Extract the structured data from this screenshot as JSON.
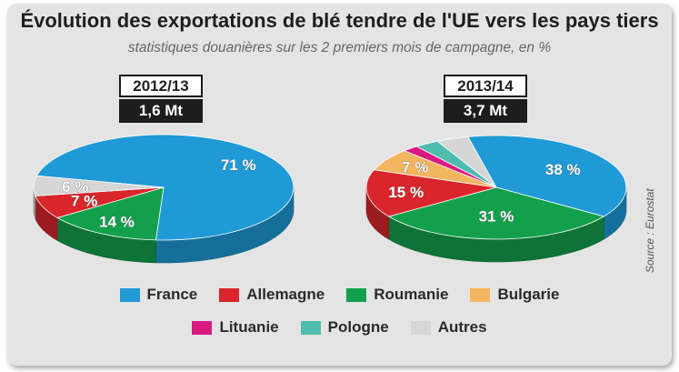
{
  "header": {
    "title": "Évolution des exportations de blé tendre de l'UE vers les pays tiers",
    "subtitle": "statistiques douanières sur les 2 premiers mois de campagne, en %"
  },
  "source": "Source : Eurostat",
  "colors": {
    "France": "#1f9ad6",
    "Allemagne": "#d9252b",
    "Roumanie": "#13a04c",
    "Bulgarie": "#f3b55f",
    "Lituanie": "#d91a82",
    "Pologne": "#4ebdb0",
    "Autres": "#d6d6d6"
  },
  "legend": [
    "France",
    "Allemagne",
    "Roumanie",
    "Bulgarie",
    "Lituanie",
    "Pologne",
    "Autres"
  ],
  "chart_data": [
    {
      "type": "pie",
      "title": "2012/13",
      "total": "1,6 Mt",
      "slices": [
        {
          "label": "France",
          "value": 71,
          "text": "71 %"
        },
        {
          "label": "Roumanie",
          "value": 14,
          "text": "14 %"
        },
        {
          "label": "Allemagne",
          "value": 7,
          "text": "7 %"
        },
        {
          "label": "Autres",
          "value": 6,
          "text": "6 %"
        }
      ]
    },
    {
      "type": "pie",
      "title": "2013/14",
      "total": "3,7 Mt",
      "slices": [
        {
          "label": "France",
          "value": 38,
          "text": "38 %"
        },
        {
          "label": "Roumanie",
          "value": 31,
          "text": "31 %"
        },
        {
          "label": "Allemagne",
          "value": 15,
          "text": "15 %"
        },
        {
          "label": "Bulgarie",
          "value": 7,
          "text": "7 %"
        },
        {
          "label": "Lituanie",
          "value": 2,
          "text": ""
        },
        {
          "label": "Pologne",
          "value": 3,
          "text": ""
        },
        {
          "label": "Autres",
          "value": 4,
          "text": ""
        }
      ]
    }
  ]
}
